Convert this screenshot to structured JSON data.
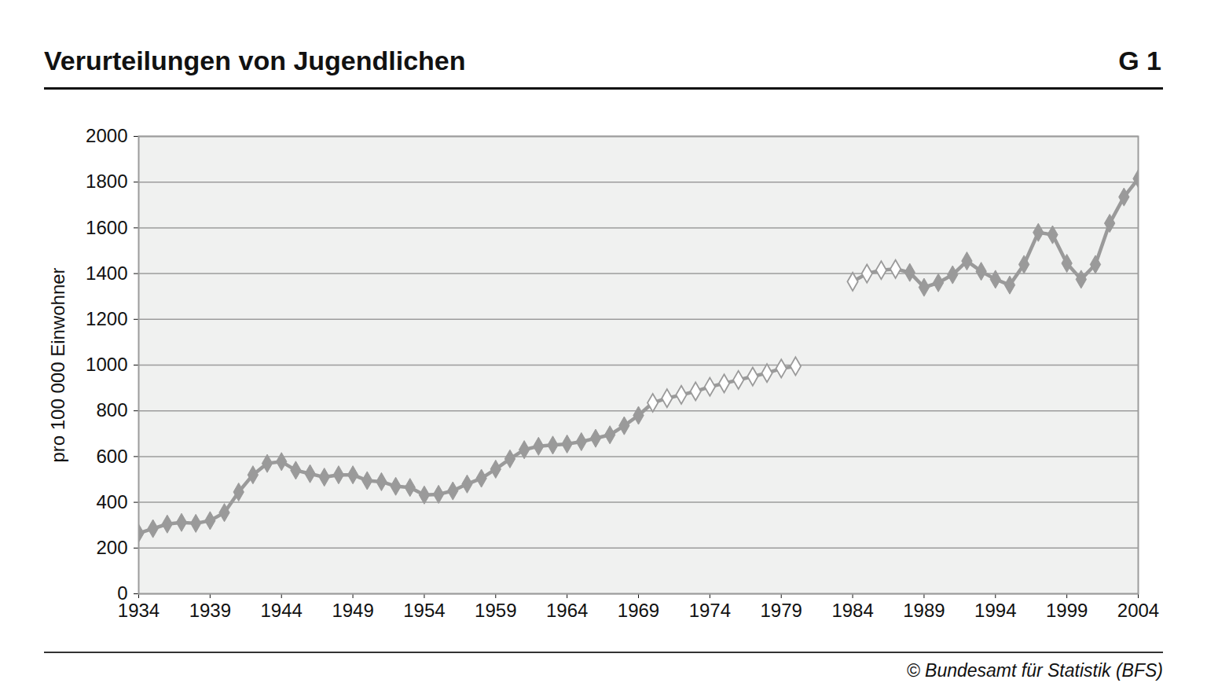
{
  "chart_data": {
    "type": "line",
    "title": "Verurteilungen von Jugendlichen",
    "figure_label": "G 1",
    "source": "© Bundesamt für Statistik (BFS)",
    "y_label": "pro 100 000 Einwohner",
    "x": [
      1934,
      1935,
      1936,
      1937,
      1938,
      1939,
      1940,
      1941,
      1942,
      1943,
      1944,
      1945,
      1946,
      1947,
      1948,
      1949,
      1950,
      1951,
      1952,
      1953,
      1954,
      1955,
      1956,
      1957,
      1958,
      1959,
      1960,
      1961,
      1962,
      1963,
      1964,
      1965,
      1966,
      1967,
      1968,
      1969,
      1970,
      1971,
      1972,
      1973,
      1974,
      1975,
      1976,
      1977,
      1978,
      1979,
      1980,
      1981,
      1982,
      1983,
      1984,
      1985,
      1986,
      1987,
      1988,
      1989,
      1990,
      1991,
      1992,
      1993,
      1994,
      1995,
      1996,
      1997,
      1998,
      1999,
      2000,
      2001,
      2002,
      2003,
      2004
    ],
    "series": [
      {
        "color": "#9a9a9a",
        "marker": "diamond",
        "values": [
          265,
          285,
          305,
          312,
          308,
          320,
          355,
          445,
          520,
          570,
          578,
          540,
          525,
          510,
          520,
          520,
          495,
          490,
          470,
          465,
          432,
          435,
          450,
          480,
          505,
          545,
          590,
          630,
          645,
          650,
          655,
          665,
          680,
          695,
          735,
          780,
          null,
          null,
          null,
          null,
          null,
          null,
          null,
          null,
          null,
          null,
          null,
          null,
          null,
          null,
          null,
          null,
          null,
          null,
          1405,
          1340,
          1360,
          1395,
          1455,
          1410,
          1375,
          1350,
          1440,
          1580,
          1570,
          1445,
          1375,
          1440,
          1620,
          1735,
          1815
        ]
      },
      {
        "color": "#9a9a9a",
        "marker": "diamond_open",
        "values": [
          null,
          null,
          null,
          null,
          null,
          null,
          null,
          null,
          null,
          null,
          null,
          null,
          null,
          null,
          null,
          null,
          null,
          null,
          null,
          null,
          null,
          null,
          null,
          null,
          null,
          null,
          null,
          null,
          null,
          null,
          null,
          null,
          null,
          null,
          null,
          null,
          835,
          855,
          870,
          885,
          905,
          920,
          935,
          950,
          965,
          985,
          995,
          null,
          null,
          null,
          1365,
          1400,
          1415,
          1420,
          null,
          null,
          null,
          null,
          null,
          null,
          null,
          null,
          null,
          null,
          null,
          null,
          null,
          null,
          null,
          null,
          null
        ]
      }
    ],
    "xlim": [
      1934,
      2004
    ],
    "xticks": [
      1934,
      1939,
      1944,
      1949,
      1954,
      1959,
      1964,
      1969,
      1974,
      1979,
      1984,
      1989,
      1994,
      1999,
      2004
    ],
    "ylim": [
      0,
      2000
    ],
    "yticks": [
      0,
      200,
      400,
      600,
      800,
      1000,
      1200,
      1400,
      1600,
      1800,
      2000
    ],
    "grid": true
  }
}
